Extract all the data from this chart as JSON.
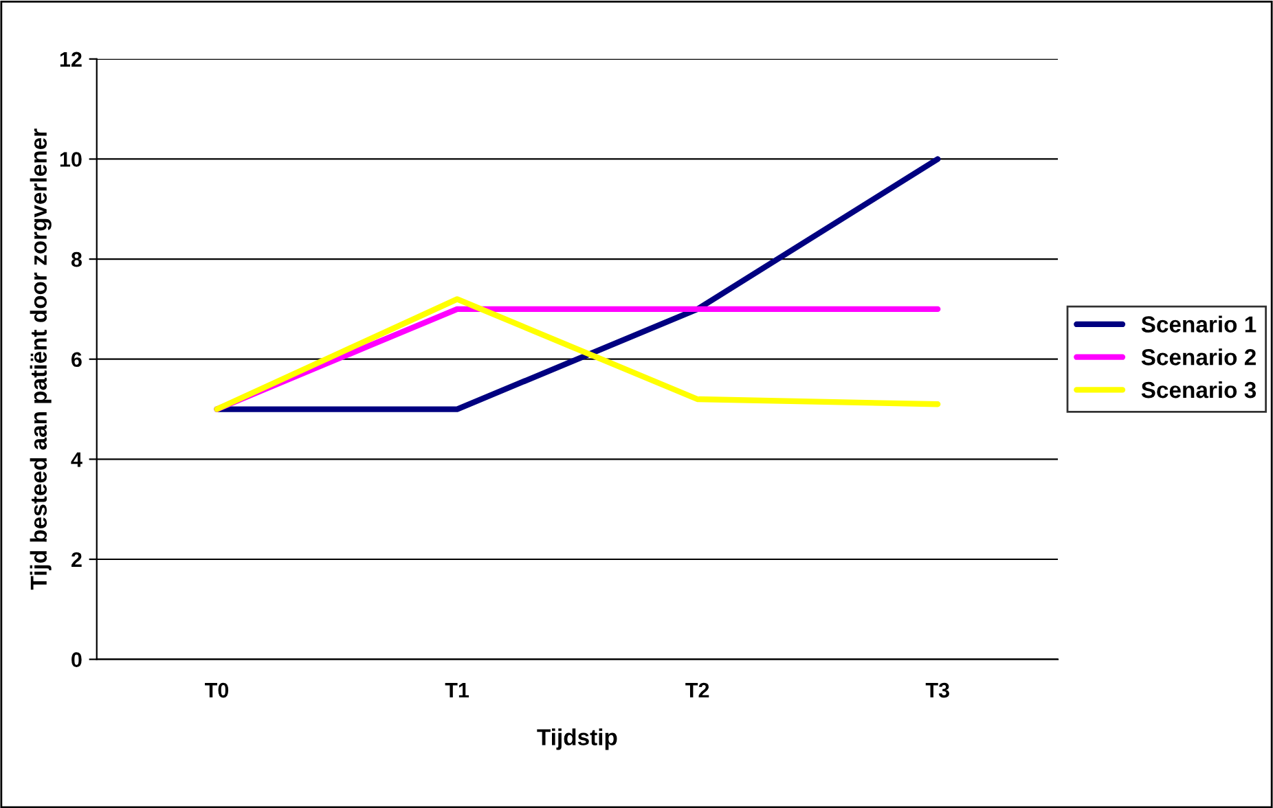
{
  "chart_data": {
    "type": "line",
    "xlabel": "Tijdstip",
    "ylabel": "Tijd besteed aan patiënt door zorgverlener",
    "categories": [
      "T0",
      "T1",
      "T2",
      "T3"
    ],
    "series": [
      {
        "name": "Scenario 1",
        "color": "#000080",
        "values": [
          5,
          5,
          7,
          10
        ]
      },
      {
        "name": "Scenario 2",
        "color": "#ff00ff",
        "values": [
          5,
          7,
          7,
          7
        ]
      },
      {
        "name": "Scenario 3",
        "color": "#ffff00",
        "values": [
          5,
          7.2,
          5.2,
          5.1
        ]
      }
    ],
    "ylim": [
      0,
      12
    ],
    "yticks": [
      0,
      2,
      4,
      6,
      8,
      10,
      12
    ],
    "grid": "y",
    "legend": "right",
    "marker": "none",
    "line_style": "solid"
  }
}
